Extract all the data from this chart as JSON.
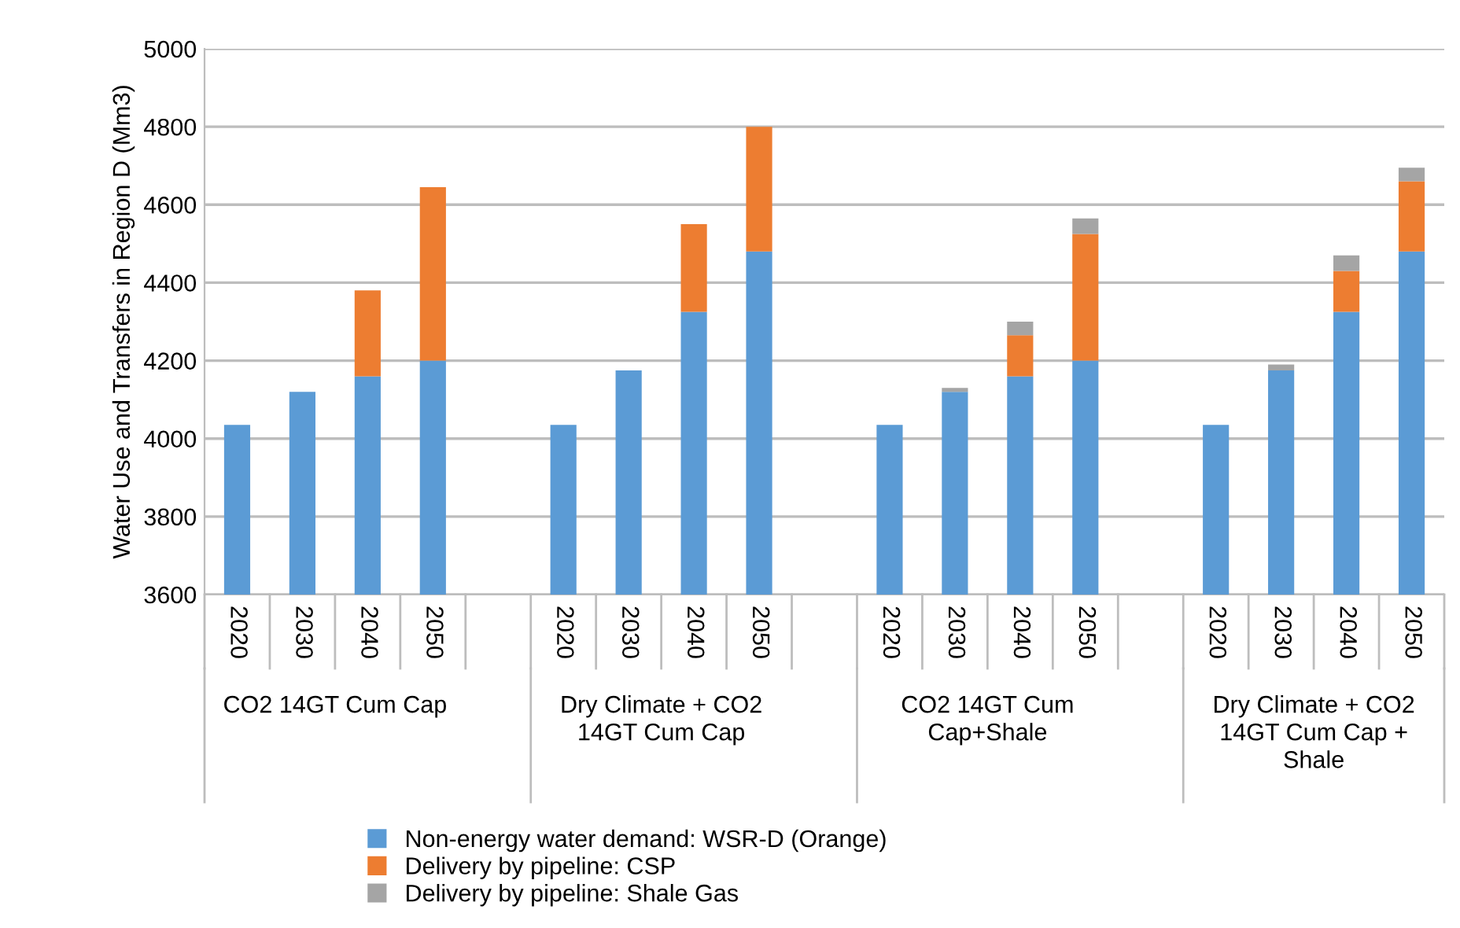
{
  "chart_data": {
    "type": "bar",
    "stacked": true,
    "ylabel": "Water Use and Transfers in Region D (Mm3)",
    "categories": [
      "2020",
      "2030",
      "2040",
      "2050",
      null,
      "2020",
      "2030",
      "2040",
      "2050",
      null,
      "2020",
      "2030",
      "2040",
      "2050",
      null,
      "2020",
      "2030",
      "2040",
      "2050"
    ],
    "series": [
      {
        "name": "Non-energy water demand: WSR-D (Orange)",
        "color": "#5b9bd5",
        "values": [
          4035,
          4120,
          4160,
          4200,
          null,
          4035,
          4175,
          4325,
          4480,
          null,
          4035,
          4120,
          4160,
          4200,
          null,
          4035,
          4175,
          4325,
          4480
        ]
      },
      {
        "name": "Delivery by pipeline: CSP",
        "color": "#ed7d31",
        "values": [
          null,
          null,
          220,
          445,
          null,
          null,
          null,
          225,
          320,
          null,
          null,
          null,
          105,
          325,
          null,
          null,
          null,
          105,
          180
        ],
        "base": [
          null,
          null,
          4160,
          4200,
          null,
          null,
          null,
          4325,
          4480,
          null,
          null,
          null,
          4160,
          4200,
          null,
          null,
          null,
          4325,
          4480
        ]
      },
      {
        "name": "Delivery by pipeline: Shale Gas",
        "color": "#a5a5a5",
        "values": [
          null,
          null,
          null,
          null,
          null,
          null,
          null,
          null,
          null,
          null,
          null,
          10,
          35,
          40,
          null,
          null,
          15,
          40,
          35
        ],
        "base": [
          null,
          null,
          null,
          null,
          null,
          null,
          null,
          null,
          null,
          null,
          null,
          4120,
          4265,
          4525,
          null,
          null,
          4175,
          4430,
          4660
        ]
      }
    ],
    "annotations": [
      "CO2 14GT Cum Cap",
      "Dry Climate + CO2\n14GT Cum Cap",
      "CO2 14GT Cum\nCap+Shale",
      "Dry Climate + CO2\n14GT Cum Cap +\nShale"
    ],
    "ylim": [
      3600,
      5000
    ],
    "yticks": [
      3600,
      3800,
      4000,
      4200,
      4400,
      4600,
      4800,
      5000
    ],
    "grid": "y",
    "legend": "bottom"
  }
}
